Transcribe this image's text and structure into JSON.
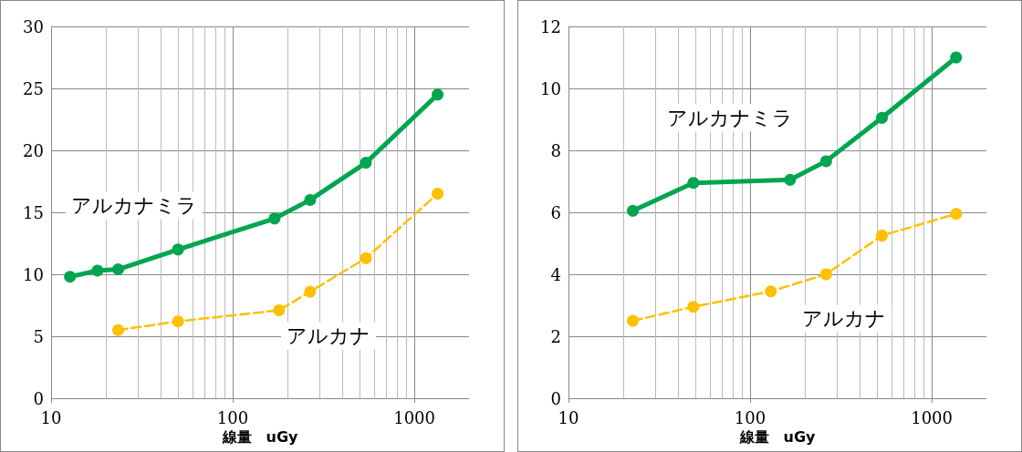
{
  "chart_data": [
    {
      "type": "line",
      "xlabel": "線量　uGy",
      "log": "x",
      "xlim": [
        10,
        2000
      ],
      "xticks": [
        10,
        100,
        1000
      ],
      "ylim": [
        0,
        30
      ],
      "yticks": [
        0,
        5,
        10,
        15,
        20,
        25,
        30
      ],
      "grid": true,
      "legend": false,
      "marker": "circle",
      "series": [
        {
          "name": "アルカナミラ",
          "color": "#00a550",
          "line_style": "solid",
          "x": [
            12.7,
            18,
            23.4,
            50,
            170,
            267,
            541,
            1343
          ],
          "values": [
            9.8,
            10.3,
            10.4,
            12.0,
            14.5,
            16.0,
            19.0,
            24.5
          ]
        },
        {
          "name": "アルカナ",
          "color": "#ffc000",
          "line_style": "dashed",
          "x": [
            23.4,
            50,
            180,
            267,
            541,
            1343
          ],
          "values": [
            5.5,
            6.2,
            7.1,
            8.6,
            11.3,
            16.5
          ]
        }
      ]
    },
    {
      "type": "line",
      "xlabel": "線量　uGy",
      "log": "x",
      "xlim": [
        10,
        2000
      ],
      "xticks": [
        10,
        100,
        1000
      ],
      "ylim": [
        0,
        12
      ],
      "yticks": [
        0,
        2,
        4,
        6,
        8,
        10,
        12
      ],
      "grid": true,
      "legend": false,
      "marker": "circle",
      "series": [
        {
          "name": "アルカナミラ",
          "color": "#00a550",
          "line_style": "solid",
          "x": [
            22.6,
            48.7,
            166,
            262,
            532,
            1362
          ],
          "values": [
            6.05,
            6.95,
            7.05,
            7.65,
            9.05,
            11.0
          ]
        },
        {
          "name": "アルカナ",
          "color": "#ffc000",
          "line_style": "dashed",
          "x": [
            22.6,
            48.7,
            130,
            262,
            532,
            1362
          ],
          "values": [
            2.5,
            2.95,
            3.45,
            4.0,
            5.25,
            5.95
          ]
        }
      ]
    }
  ]
}
